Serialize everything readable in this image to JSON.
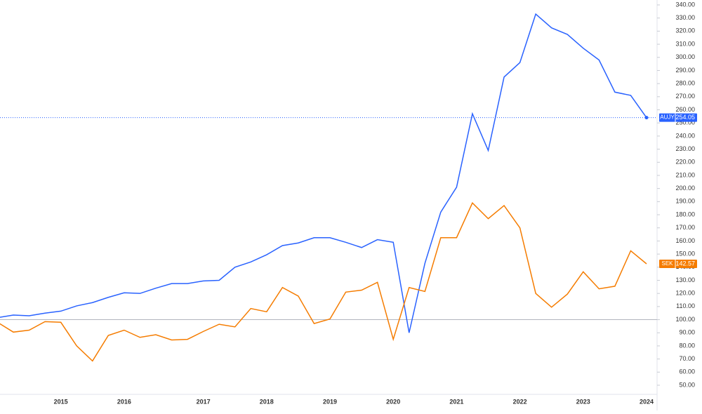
{
  "chart_data": {
    "type": "line",
    "categories": [
      null,
      null,
      null,
      null,
      "2015",
      null,
      null,
      null,
      "2016",
      null,
      null,
      null,
      null,
      "2017",
      null,
      null,
      null,
      "2018",
      null,
      null,
      null,
      "2019",
      null,
      null,
      null,
      "2020",
      null,
      null,
      null,
      "2021",
      null,
      null,
      null,
      "2022",
      null,
      null,
      null,
      "2023",
      null,
      null,
      null,
      "2024"
    ],
    "series": [
      {
        "name": "AUJY",
        "color": "#2962ff",
        "values": [
          101.5,
          103.5,
          103,
          105,
          106.5,
          110.5,
          113,
          117,
          120.5,
          120,
          124,
          127.5,
          127.5,
          129.5,
          130,
          140,
          144,
          149.5,
          156.5,
          158.5,
          162.5,
          162.5,
          159,
          155,
          161,
          159,
          90,
          143,
          182,
          201,
          257,
          229,
          285,
          296,
          333,
          322.5,
          317.5,
          307,
          298,
          273.5,
          271,
          254.05
        ]
      },
      {
        "name": "SEK",
        "color": "#f57c00",
        "values": [
          98,
          90.5,
          92,
          98.5,
          98,
          80,
          68.5,
          88,
          92,
          86.5,
          88.5,
          84.5,
          85,
          91,
          96.5,
          94.5,
          108.5,
          106,
          124.5,
          118,
          97,
          100.5,
          121,
          122.5,
          128.5,
          85,
          124.5,
          121.5,
          162.5,
          162.5,
          189,
          177,
          187,
          170,
          120,
          109.5,
          119.5,
          136.5,
          123.5,
          125.5,
          152.5,
          142.57
        ]
      }
    ],
    "ylim": [
      45,
      342
    ],
    "yticks": [
      {
        "value": 50,
        "label": "50.00"
      },
      {
        "value": 60,
        "label": "60.00"
      },
      {
        "value": 70,
        "label": "70.00"
      },
      {
        "value": 80,
        "label": "80.00"
      },
      {
        "value": 90,
        "label": "90.00"
      },
      {
        "value": 100,
        "label": "100.00"
      },
      {
        "value": 110,
        "label": "110.00"
      },
      {
        "value": 120,
        "label": "120.00"
      },
      {
        "value": 130,
        "label": "130.00"
      },
      {
        "value": 140,
        "label": "140.00"
      },
      {
        "value": 150,
        "label": "150.00"
      },
      {
        "value": 160,
        "label": "160.00"
      },
      {
        "value": 170,
        "label": "170.00"
      },
      {
        "value": 180,
        "label": "180.00"
      },
      {
        "value": 190,
        "label": "190.00"
      },
      {
        "value": 200,
        "label": "200.00"
      },
      {
        "value": 210,
        "label": "210.00"
      },
      {
        "value": 220,
        "label": "220.00"
      },
      {
        "value": 230,
        "label": "230.00"
      },
      {
        "value": 240,
        "label": "240.00"
      },
      {
        "value": 250,
        "label": "250.00"
      },
      {
        "value": 260,
        "label": "260.00"
      },
      {
        "value": 270,
        "label": "270.00"
      },
      {
        "value": 280,
        "label": "280.00"
      },
      {
        "value": 290,
        "label": "290.00"
      },
      {
        "value": 300,
        "label": "300.00"
      },
      {
        "value": 310,
        "label": "310.00"
      },
      {
        "value": 320,
        "label": "320.00"
      },
      {
        "value": 330,
        "label": "330.00"
      },
      {
        "value": 340,
        "label": "340.00"
      }
    ],
    "reference_line": 100,
    "grid": false
  }
}
